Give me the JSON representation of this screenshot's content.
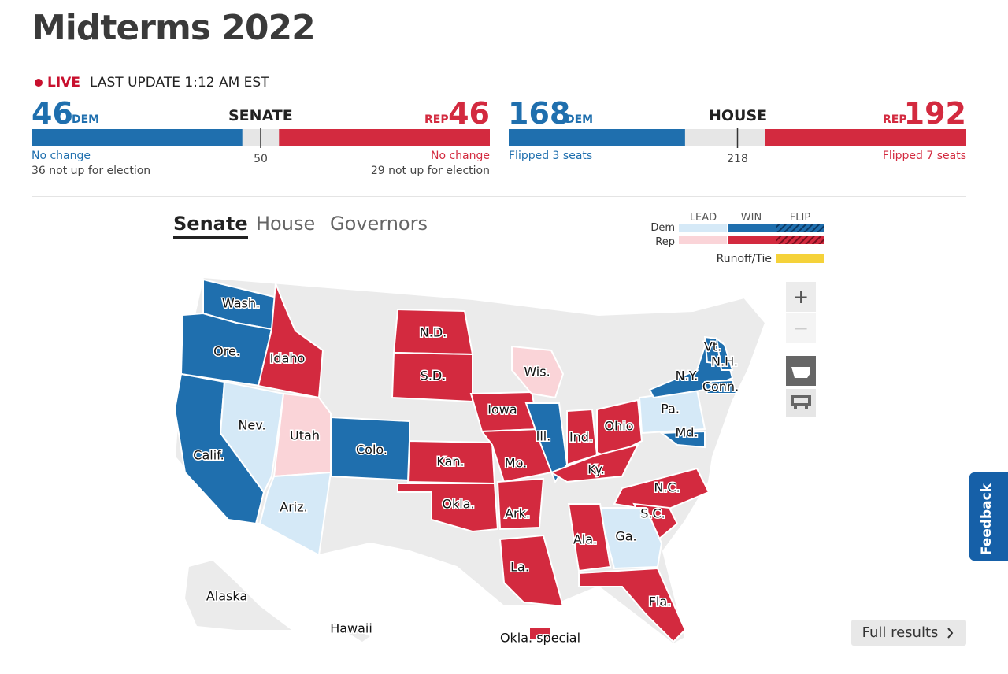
{
  "header": {
    "title": "Midterms 2022",
    "live": "LIVE",
    "last_update": "LAST UPDATE 1:12 AM EST"
  },
  "senate": {
    "label": "SENATE",
    "majority": 50,
    "dem": {
      "tag": "DEM",
      "seats": 46,
      "color": "#1f6fae",
      "note": "No change",
      "sub": "36 not up for election"
    },
    "rep": {
      "tag": "REP",
      "seats": 46,
      "color": "#d32a3f",
      "note": "No change",
      "sub": "29 not up for election"
    }
  },
  "house": {
    "label": "HOUSE",
    "majority": 218,
    "dem": {
      "tag": "DEM",
      "seats": 168,
      "color": "#1f6fae",
      "note": "Flipped 3 seats"
    },
    "rep": {
      "tag": "REP",
      "seats": 192,
      "color": "#d32a3f",
      "note": "Flipped 7 seats"
    }
  },
  "tabs": [
    "Senate",
    "House",
    "Governors"
  ],
  "legend": {
    "columns": [
      "LEAD",
      "WIN",
      "FLIP"
    ],
    "rows": [
      "Dem",
      "Rep"
    ],
    "runoff": "Runoff/Tie"
  },
  "map": {
    "states": [
      {
        "label": "Wash.",
        "color": "#1f6fae"
      },
      {
        "label": "Ore.",
        "color": "#1f6fae"
      },
      {
        "label": "Calif.",
        "color": "#1f6fae"
      },
      {
        "label": "Idaho",
        "color": "#d32a3f"
      },
      {
        "label": "Nev.",
        "color": "#d5e9f7"
      },
      {
        "label": "Utah",
        "color": "#fad4d8"
      },
      {
        "label": "Colo.",
        "color": "#1f6fae"
      },
      {
        "label": "Ariz.",
        "color": "#d5e9f7"
      },
      {
        "label": "N.D.",
        "color": "#d32a3f"
      },
      {
        "label": "S.D.",
        "color": "#d32a3f"
      },
      {
        "label": "Kan.",
        "color": "#d32a3f"
      },
      {
        "label": "Okla.",
        "color": "#d32a3f"
      },
      {
        "label": "Iowa",
        "color": "#d32a3f"
      },
      {
        "label": "Wis.",
        "color": "#fad4d8"
      },
      {
        "label": "Mo.",
        "color": "#d32a3f"
      },
      {
        "label": "Ark.",
        "color": "#d32a3f"
      },
      {
        "label": "La.",
        "color": "#d32a3f"
      },
      {
        "label": "Ill.",
        "color": "#1f6fae"
      },
      {
        "label": "Ind.",
        "color": "#d32a3f"
      },
      {
        "label": "Ohio",
        "color": "#d32a3f"
      },
      {
        "label": "Ky.",
        "color": "#d32a3f"
      },
      {
        "label": "N.C.",
        "color": "#d32a3f"
      },
      {
        "label": "S.C.",
        "color": "#d32a3f"
      },
      {
        "label": "Ga.",
        "color": "#d5e9f7"
      },
      {
        "label": "Ala.",
        "color": "#d32a3f"
      },
      {
        "label": "Fla.",
        "color": "#d32a3f"
      },
      {
        "label": "Pa.",
        "color": "#d5e9f7"
      },
      {
        "label": "N.Y.",
        "color": "#1f6fae"
      },
      {
        "label": "Vt.",
        "color": "#1f6fae"
      },
      {
        "label": "N.H.",
        "color": "#1f6fae"
      },
      {
        "label": "Conn.",
        "color": "#1f6fae"
      },
      {
        "label": "Md.",
        "color": "#1f6fae"
      },
      {
        "label": "Okla. special",
        "color": "#d32a3f"
      }
    ],
    "other_labels": [
      "Alaska",
      "Hawaii"
    ]
  },
  "controls": {
    "zoom_in": "+",
    "zoom_out": "−"
  },
  "full_results": "Full results",
  "feedback": "Feedback"
}
